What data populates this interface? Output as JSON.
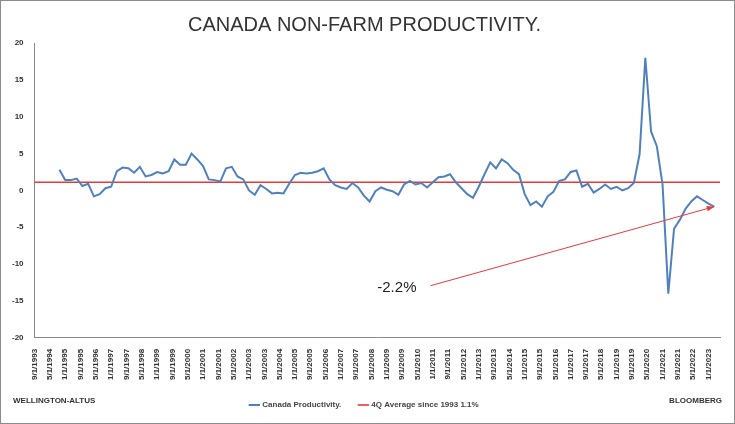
{
  "chart_data": {
    "type": "line",
    "title": "CANADA NON-FARM PRODUCTIVITY.",
    "xlim": [
      1993.6667,
      2023.5
    ],
    "xticks": [
      {
        "value": 1993.6667,
        "label": "9/1/1993"
      },
      {
        "value": 1994.3333,
        "label": "5/1/1994"
      },
      {
        "value": 1995,
        "label": "1/1/1995"
      },
      {
        "value": 1995.6667,
        "label": "9/1/1995"
      },
      {
        "value": 1996.3333,
        "label": "5/1/1996"
      },
      {
        "value": 1997,
        "label": "1/1/1997"
      },
      {
        "value": 1997.6667,
        "label": "9/1/1997"
      },
      {
        "value": 1998.3333,
        "label": "5/1/1998"
      },
      {
        "value": 1999,
        "label": "1/1/1999"
      },
      {
        "value": 1999.6667,
        "label": "9/1/1999"
      },
      {
        "value": 2000.3333,
        "label": "5/1/2000"
      },
      {
        "value": 2001,
        "label": "1/1/2001"
      },
      {
        "value": 2001.6667,
        "label": "9/1/2001"
      },
      {
        "value": 2002.3333,
        "label": "5/1/2002"
      },
      {
        "value": 2003,
        "label": "1/1/2003"
      },
      {
        "value": 2003.6667,
        "label": "9/1/2003"
      },
      {
        "value": 2004.3333,
        "label": "5/1/2004"
      },
      {
        "value": 2005,
        "label": "1/1/2005"
      },
      {
        "value": 2005.6667,
        "label": "9/1/2005"
      },
      {
        "value": 2006.3333,
        "label": "5/1/2006"
      },
      {
        "value": 2007,
        "label": "1/1/2007"
      },
      {
        "value": 2007.6667,
        "label": "9/1/2007"
      },
      {
        "value": 2008.3333,
        "label": "5/1/2008"
      },
      {
        "value": 2009,
        "label": "1/1/2009"
      },
      {
        "value": 2009.6667,
        "label": "9/1/2009"
      },
      {
        "value": 2010.3333,
        "label": "5/1/2010"
      },
      {
        "value": 2011,
        "label": "1/1/2011"
      },
      {
        "value": 2011.6667,
        "label": "9/1/2011"
      },
      {
        "value": 2012.3333,
        "label": "5/1/2012"
      },
      {
        "value": 2013,
        "label": "1/1/2013"
      },
      {
        "value": 2013.6667,
        "label": "9/1/2013"
      },
      {
        "value": 2014.3333,
        "label": "5/1/2014"
      },
      {
        "value": 2015,
        "label": "1/1/2015"
      },
      {
        "value": 2015.6667,
        "label": "9/1/2015"
      },
      {
        "value": 2016.3333,
        "label": "5/1/2016"
      },
      {
        "value": 2017,
        "label": "1/1/2017"
      },
      {
        "value": 2017.6667,
        "label": "9/1/2017"
      },
      {
        "value": 2018.3333,
        "label": "5/1/2018"
      },
      {
        "value": 2019,
        "label": "1/1/2019"
      },
      {
        "value": 2019.6667,
        "label": "9/1/2019"
      },
      {
        "value": 2020.3333,
        "label": "5/1/2020"
      },
      {
        "value": 2021,
        "label": "1/1/2021"
      },
      {
        "value": 2021.6667,
        "label": "9/1/2021"
      },
      {
        "value": 2022.3333,
        "label": "5/1/2022"
      },
      {
        "value": 2023,
        "label": "1/1/2023"
      }
    ],
    "ylim": [
      -20,
      20
    ],
    "yticks": [
      -20,
      -15,
      -10,
      -5,
      0,
      5,
      10,
      15,
      20
    ],
    "grid": false,
    "legend": "bottom",
    "series": [
      {
        "name": "Canada Productivity.",
        "color": "#4f81bd",
        "x": [
          1994.75,
          1995,
          1995.25,
          1995.5,
          1995.75,
          1996,
          1996.25,
          1996.5,
          1996.75,
          1997,
          1997.25,
          1997.5,
          1997.75,
          1998,
          1998.25,
          1998.5,
          1998.75,
          1999,
          1999.25,
          1999.5,
          1999.75,
          2000,
          2000.25,
          2000.5,
          2000.75,
          2001,
          2001.25,
          2001.5,
          2001.75,
          2002,
          2002.25,
          2002.5,
          2002.75,
          2003,
          2003.25,
          2003.5,
          2003.75,
          2004,
          2004.25,
          2004.5,
          2004.75,
          2005,
          2005.25,
          2005.5,
          2005.75,
          2006,
          2006.25,
          2006.5,
          2006.75,
          2007,
          2007.25,
          2007.5,
          2007.75,
          2008,
          2008.25,
          2008.5,
          2008.75,
          2009,
          2009.25,
          2009.5,
          2009.75,
          2010,
          2010.25,
          2010.5,
          2010.75,
          2011,
          2011.25,
          2011.5,
          2011.75,
          2012,
          2012.25,
          2012.5,
          2012.75,
          2013,
          2013.25,
          2013.5,
          2013.75,
          2014,
          2014.25,
          2014.5,
          2014.75,
          2015,
          2015.25,
          2015.5,
          2015.75,
          2016,
          2016.25,
          2016.5,
          2016.75,
          2017,
          2017.25,
          2017.5,
          2017.75,
          2018,
          2018.25,
          2018.5,
          2018.75,
          2019,
          2019.25,
          2019.5,
          2019.75,
          2020,
          2020.25,
          2020.5,
          2020.75,
          2021,
          2021.25,
          2021.5,
          2021.75,
          2022,
          2022.25,
          2022.5,
          2022.75,
          2023,
          2023.25
        ],
        "values": [
          2.8,
          1.4,
          1.4,
          1.6,
          0.6,
          0.9,
          -0.8,
          -0.5,
          0.3,
          0.5,
          2.6,
          3.1,
          3.0,
          2.4,
          3.2,
          1.9,
          2.1,
          2.5,
          2.3,
          2.6,
          4.2,
          3.5,
          3.5,
          5.0,
          4.2,
          3.3,
          1.5,
          1.4,
          1.2,
          3.0,
          3.2,
          1.9,
          1.5,
          0.0,
          -0.6,
          0.7,
          0.2,
          -0.4,
          -0.3,
          -0.4,
          0.9,
          2.1,
          2.4,
          2.3,
          2.4,
          2.6,
          3.0,
          1.5,
          0.7,
          0.4,
          0.2,
          1.0,
          0.4,
          -0.7,
          -1.5,
          -0.1,
          0.4,
          0.1,
          -0.1,
          -0.6,
          0.8,
          1.3,
          0.8,
          1.0,
          0.4,
          1.1,
          1.8,
          1.9,
          2.2,
          1.1,
          0.3,
          -0.5,
          -1.0,
          0.5,
          2.2,
          3.8,
          3.0,
          4.2,
          3.7,
          2.8,
          2.2,
          -0.5,
          -2.0,
          -1.5,
          -2.2,
          -0.8,
          -0.2,
          1.3,
          1.5,
          2.5,
          2.7,
          0.5,
          0.9,
          -0.3,
          0.2,
          0.8,
          0.2,
          0.5,
          0.0,
          0.3,
          1.0,
          4.9,
          18.0,
          8.0,
          6.0,
          0.8,
          -14.0,
          -5.2,
          -4.0,
          -2.5,
          -1.5,
          -0.8,
          -1.3,
          -1.8,
          -2.2
        ]
      },
      {
        "name": "4Q Average since 1993 1.1%",
        "color": "#e8393a",
        "x": [
          1993.6667,
          2023.5
        ],
        "values": [
          1.1,
          1.1
        ]
      }
    ],
    "annotations": [
      {
        "text": "-2.2%",
        "x": 2023.25,
        "y": -2.2,
        "color": "#e8393a"
      }
    ],
    "sources": [
      "WELLINGTON-ALTUS",
      "BLOOMBERG"
    ]
  }
}
